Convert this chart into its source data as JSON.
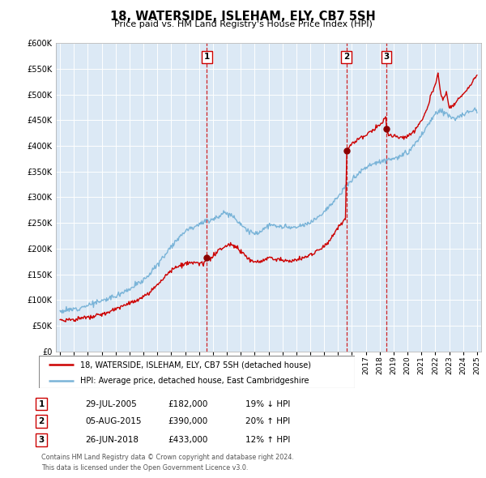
{
  "title": "18, WATERSIDE, ISLEHAM, ELY, CB7 5SH",
  "subtitle": "Price paid vs. HM Land Registry's House Price Index (HPI)",
  "plot_bg_color": "#dce9f5",
  "legend_label_red": "18, WATERSIDE, ISLEHAM, ELY, CB7 5SH (detached house)",
  "legend_label_blue": "HPI: Average price, detached house, East Cambridgeshire",
  "footer_line1": "Contains HM Land Registry data © Crown copyright and database right 2024.",
  "footer_line2": "This data is licensed under the Open Government Licence v3.0.",
  "transactions": [
    {
      "num": 1,
      "date": "29-JUL-2005",
      "price": "£182,000",
      "change": "19% ↓ HPI",
      "year": 2005.57,
      "price_val": 182000
    },
    {
      "num": 2,
      "date": "05-AUG-2015",
      "price": "£390,000",
      "change": "20% ↑ HPI",
      "year": 2015.6,
      "price_val": 390000
    },
    {
      "num": 3,
      "date": "26-JUN-2018",
      "price": "£433,000",
      "change": "12% ↑ HPI",
      "year": 2018.49,
      "price_val": 433000
    }
  ],
  "ylim": [
    0,
    600000
  ],
  "yticks": [
    0,
    50000,
    100000,
    150000,
    200000,
    250000,
    300000,
    350000,
    400000,
    450000,
    500000,
    550000,
    600000
  ],
  "xlim_start": 1994.7,
  "xlim_end": 2025.3,
  "hpi_color": "#7ab4d8",
  "prop_color": "#cc0000",
  "vline_color": "#cc0000",
  "dot_color": "#8b0000"
}
